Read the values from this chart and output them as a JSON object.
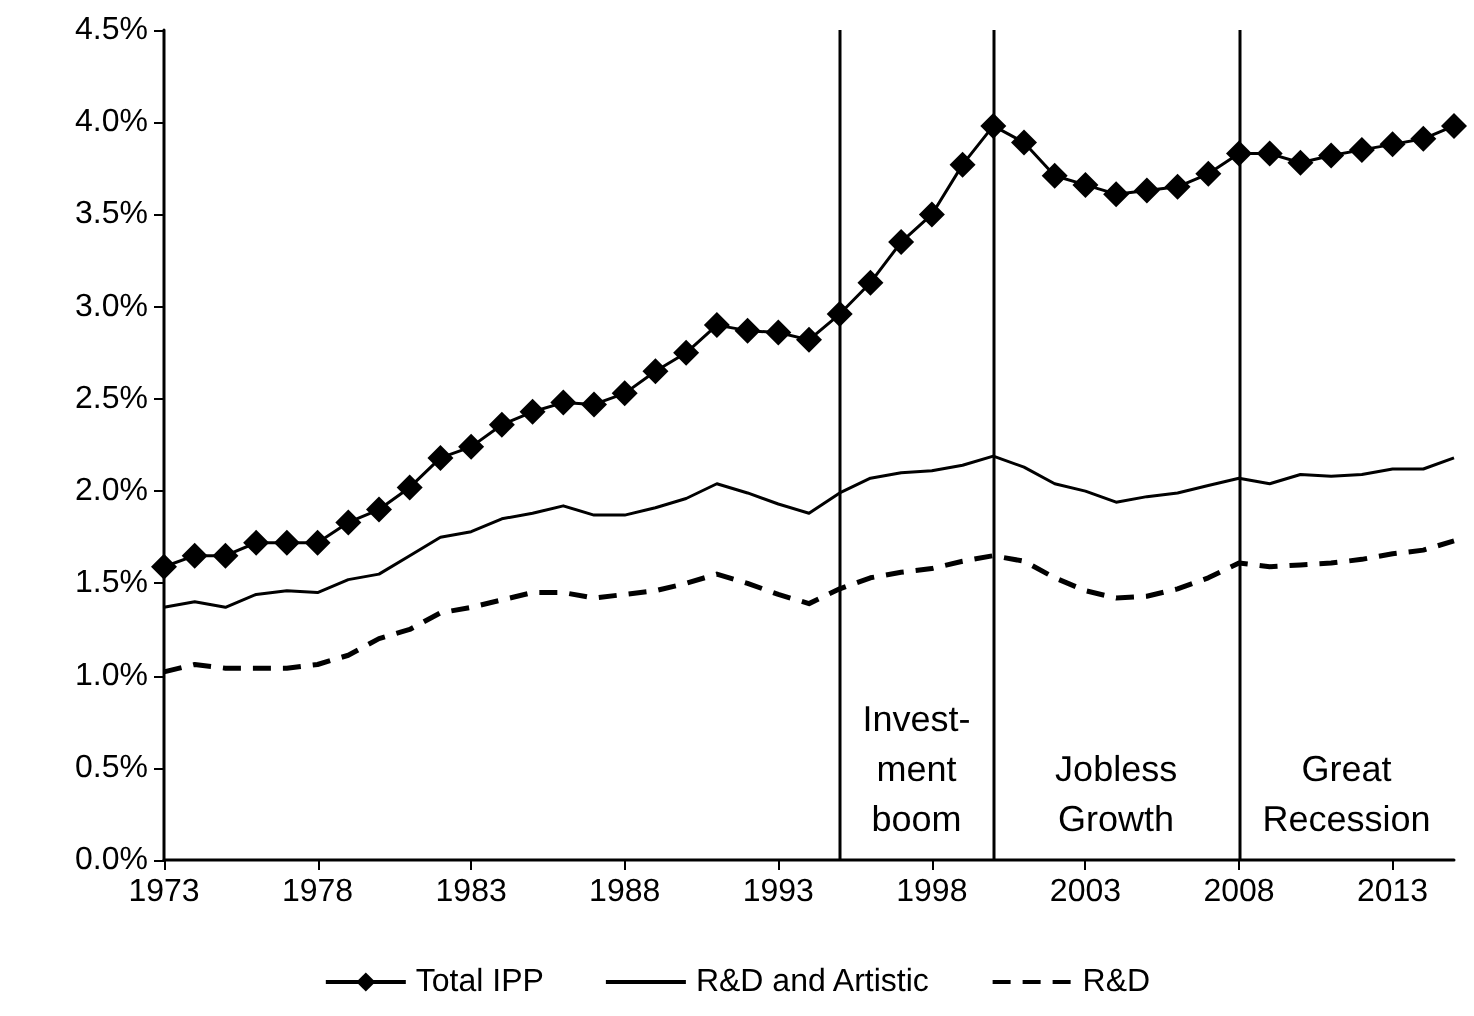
{
  "chart_data": {
    "type": "line",
    "x": [
      1973,
      1974,
      1975,
      1976,
      1977,
      1978,
      1979,
      1980,
      1981,
      1982,
      1983,
      1984,
      1985,
      1986,
      1987,
      1988,
      1989,
      1990,
      1991,
      1992,
      1993,
      1994,
      1995,
      1996,
      1997,
      1998,
      1999,
      2000,
      2001,
      2002,
      2003,
      2004,
      2005,
      2006,
      2007,
      2008,
      2009,
      2010,
      2011,
      2012,
      2013,
      2014,
      2015
    ],
    "series": [
      {
        "name": "Total IPP",
        "color": "#000000",
        "marker": "diamond",
        "line_style": "solid",
        "values": [
          1.59,
          1.65,
          1.65,
          1.72,
          1.72,
          1.72,
          1.83,
          1.9,
          2.02,
          2.18,
          2.24,
          2.36,
          2.43,
          2.48,
          2.47,
          2.53,
          2.65,
          2.75,
          2.9,
          2.87,
          2.86,
          2.82,
          2.96,
          3.13,
          3.35,
          3.5,
          3.77,
          3.98,
          3.89,
          3.71,
          3.66,
          3.61,
          3.63,
          3.65,
          3.72,
          3.83,
          3.83,
          3.78,
          3.82,
          3.85,
          3.88,
          3.91,
          3.98
        ]
      },
      {
        "name": "R&D and Artistic",
        "color": "#000000",
        "marker": "none",
        "line_style": "solid",
        "values": [
          1.37,
          1.4,
          1.37,
          1.44,
          1.46,
          1.45,
          1.52,
          1.55,
          1.65,
          1.75,
          1.78,
          1.85,
          1.88,
          1.92,
          1.87,
          1.87,
          1.91,
          1.96,
          2.04,
          1.99,
          1.93,
          1.88,
          1.99,
          2.07,
          2.1,
          2.11,
          2.14,
          2.19,
          2.13,
          2.04,
          2.0,
          1.94,
          1.97,
          1.99,
          2.03,
          2.07,
          2.04,
          2.09,
          2.08,
          2.09,
          2.12,
          2.12,
          2.18
        ]
      },
      {
        "name": "R&D",
        "color": "#000000",
        "marker": "none",
        "line_style": "dashed",
        "values": [
          1.02,
          1.06,
          1.04,
          1.04,
          1.04,
          1.06,
          1.11,
          1.2,
          1.25,
          1.34,
          1.37,
          1.41,
          1.45,
          1.45,
          1.42,
          1.44,
          1.46,
          1.5,
          1.55,
          1.5,
          1.44,
          1.39,
          1.47,
          1.53,
          1.56,
          1.58,
          1.62,
          1.65,
          1.62,
          1.53,
          1.46,
          1.42,
          1.43,
          1.47,
          1.53,
          1.61,
          1.59,
          1.6,
          1.61,
          1.63,
          1.66,
          1.68,
          1.73
        ]
      }
    ],
    "xlim": [
      1973,
      2015
    ],
    "xticks": [
      1973,
      1978,
      1983,
      1988,
      1993,
      1998,
      2003,
      2008,
      2013
    ],
    "ylim": [
      0,
      4.5
    ],
    "yticks": [
      {
        "value": 0,
        "label": "0.0%"
      },
      {
        "value": 0.5,
        "label": "0.5%"
      },
      {
        "value": 1,
        "label": "1.0%"
      },
      {
        "value": 1.5,
        "label": "1.5%"
      },
      {
        "value": 2,
        "label": "2.0%"
      },
      {
        "value": 2.5,
        "label": "2.5%"
      },
      {
        "value": 3,
        "label": "3.0%"
      },
      {
        "value": 3.5,
        "label": "3.5%"
      },
      {
        "value": 4,
        "label": "4.0%"
      },
      {
        "value": 4.5,
        "label": "4.5%"
      }
    ],
    "ref_lines": [
      {
        "axis": "x",
        "value": 1995,
        "color": "#000000"
      },
      {
        "axis": "x",
        "value": 2000,
        "color": "#000000"
      },
      {
        "axis": "x",
        "value": 2008,
        "color": "#000000"
      }
    ],
    "annotations": [
      "Invest-\nment\nboom",
      "Jobless\nGrowth",
      "Great\nRecession"
    ],
    "grid": false,
    "legend": "bottom"
  }
}
